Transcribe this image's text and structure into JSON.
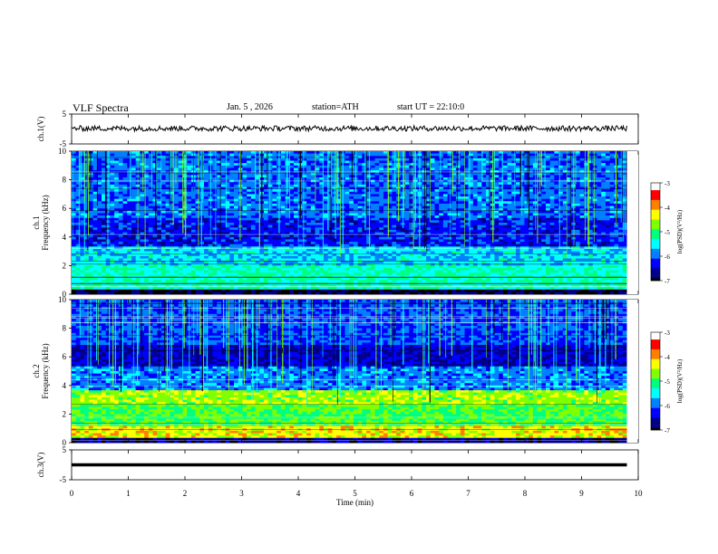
{
  "header": {
    "title": "VLF Spectra",
    "date": "Jan. 5 , 2026",
    "station": "station=ATH",
    "start": "start UT = 22:10:0"
  },
  "chart_data": [
    {
      "type": "line",
      "panel": "ch1-waveform",
      "ylabel": "ch.1(V)",
      "ylim": [
        -5,
        5
      ],
      "yticks": [
        "5",
        "-5"
      ],
      "xlim": [
        0,
        10
      ],
      "trace_level": 0.2,
      "trace_amplitude": 0.9,
      "color": "#000000"
    },
    {
      "type": "heatmap",
      "panel": "ch1-spectrogram",
      "ylabel": "ch.1\nFrequency (kHz)",
      "ylim": [
        0,
        10
      ],
      "yticks": [
        "0",
        "2",
        "4",
        "6",
        "8",
        "10"
      ],
      "xlim": [
        0,
        9.8
      ],
      "colorbar_label": "log(PSD)(V²/Hz)",
      "colorbar_ticks": [
        "-3",
        "-4",
        "-5",
        "-6",
        "-7"
      ],
      "colorbar_range": [
        -7,
        -3
      ]
    },
    {
      "type": "heatmap",
      "panel": "ch2-spectrogram",
      "ylabel": "ch.2\nFrequency (kHz)",
      "ylim": [
        0,
        10
      ],
      "yticks": [
        "0",
        "2",
        "4",
        "6",
        "8",
        "10"
      ],
      "xlim": [
        0,
        9.8
      ],
      "colorbar_label": "log(PSD)(V²/Hz)",
      "colorbar_ticks": [
        "-3",
        "-4",
        "-5",
        "-6",
        "-7"
      ],
      "colorbar_range": [
        -7,
        -3
      ]
    },
    {
      "type": "line",
      "panel": "ch3-waveform",
      "ylabel": "ch.3(V)",
      "ylim": [
        -5,
        5
      ],
      "yticks": [
        "5",
        "-5"
      ],
      "xlim": [
        0,
        10
      ],
      "trace_level": 0,
      "trace_amplitude": 0,
      "color": "#000000"
    }
  ],
  "xaxis": {
    "label": "Time (min)",
    "range": [
      0,
      10
    ],
    "ticks": [
      "0",
      "1",
      "2",
      "3",
      "4",
      "5",
      "6",
      "7",
      "8",
      "9",
      "10"
    ]
  },
  "colormap": [
    "#000000",
    "#00008b",
    "#0000ff",
    "#0080ff",
    "#00ffff",
    "#00ff80",
    "#80ff00",
    "#ffff00",
    "#ff8000",
    "#ff0000",
    "#ffffff"
  ]
}
